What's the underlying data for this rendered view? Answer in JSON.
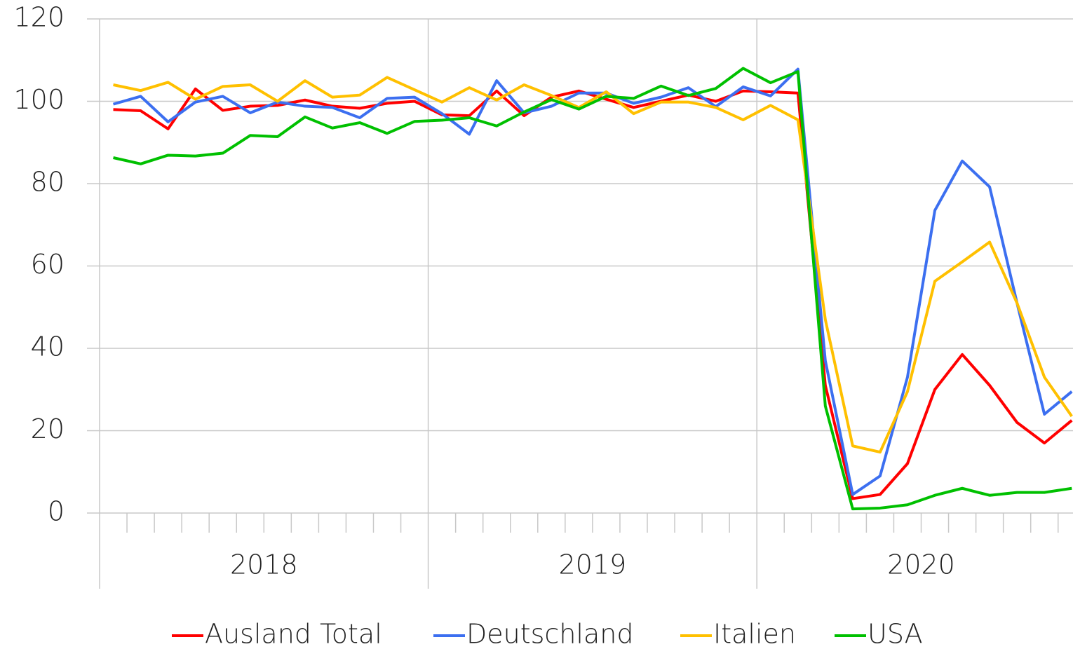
{
  "chart_data": {
    "type": "line",
    "categories": [
      null,
      null,
      null,
      null,
      null,
      null,
      null,
      null,
      null,
      null,
      null,
      null,
      null,
      null,
      null,
      null,
      null,
      null,
      null,
      null,
      null,
      null,
      null,
      null,
      null,
      null,
      null,
      null,
      null,
      null,
      null,
      null,
      null,
      null,
      null,
      null
    ],
    "groups": [
      "2018",
      "2019",
      "2020"
    ],
    "ylim": [
      0,
      120
    ],
    "yticks": [
      0,
      20,
      40,
      60,
      80,
      100,
      120
    ],
    "grid": true,
    "legend": "bottom",
    "series": [
      {
        "name": "Ausland Total",
        "color": "#ff0000",
        "values": [
          98,
          97.7,
          93.3,
          103,
          97.8,
          98.8,
          99,
          100.3,
          98.8,
          98.3,
          99.5,
          100,
          96.7,
          96.5,
          102.5,
          96.5,
          101,
          102.5,
          100.5,
          98.5,
          100,
          101.5,
          100,
          102.5,
          102.3,
          102,
          31,
          3.5,
          4.5,
          12,
          30,
          38.5,
          31,
          22,
          17,
          22.5
        ]
      },
      {
        "name": "Deutschland",
        "color": "#3c6ff0",
        "values": [
          99.3,
          101.2,
          95,
          99.8,
          101.2,
          97.2,
          99.8,
          98.8,
          98.5,
          96,
          100.7,
          101,
          97,
          92,
          105,
          97.2,
          98.8,
          102,
          102,
          99.5,
          101,
          103.3,
          98.7,
          103.5,
          101.3,
          107.8,
          37,
          4.5,
          9,
          33,
          73.5,
          85.5,
          79.2,
          51,
          24,
          29.5
        ]
      },
      {
        "name": "Italien",
        "color": "#ffc000",
        "values": [
          104,
          102.6,
          104.6,
          100.5,
          103.6,
          104,
          100,
          105,
          101,
          101.5,
          105.8,
          102.8,
          99.8,
          103.3,
          100.3,
          104,
          101.4,
          98.5,
          102.3,
          97,
          99.8,
          99.8,
          98.5,
          95.5,
          99,
          95.5,
          47,
          16.3,
          14.8,
          29.5,
          56.3,
          61,
          65.8,
          51,
          33,
          23.5
        ]
      },
      {
        "name": "USA",
        "color": "#00c000",
        "values": [
          86.3,
          84.8,
          86.9,
          86.7,
          87.4,
          91.7,
          91.4,
          96.2,
          93.5,
          94.8,
          92.2,
          95.1,
          95.4,
          96,
          94,
          97.4,
          100.4,
          98.1,
          101.2,
          100.7,
          103.7,
          101.4,
          103.1,
          108,
          104.5,
          107.2,
          26,
          1,
          1.2,
          2,
          4.3,
          6,
          4.3,
          5,
          5,
          6
        ]
      }
    ]
  }
}
